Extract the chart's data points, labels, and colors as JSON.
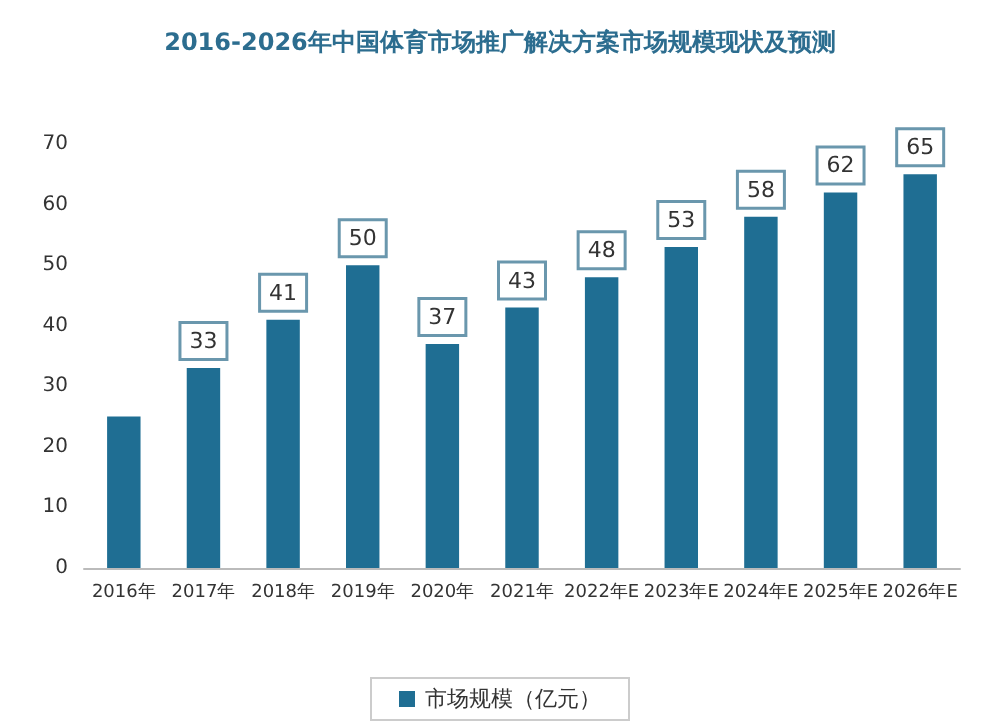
{
  "chart_data": {
    "type": "bar",
    "title": "2016-2026年中国体育市场推广解决方案市场规模现状及预测",
    "categories": [
      "2016年",
      "2017年",
      "2018年",
      "2019年",
      "2020年",
      "2021年",
      "2022年E",
      "2023年E",
      "2024年E",
      "2025年E",
      "2026年E"
    ],
    "series": [
      {
        "name": "市场规模（亿元）",
        "color": "#1f6e93",
        "values": [
          25,
          33,
          41,
          50,
          37,
          43,
          48,
          53,
          58,
          62,
          65
        ],
        "value_labels": [
          null,
          "33",
          "41",
          "50",
          "37",
          "43",
          "48",
          "53",
          "58",
          "62",
          "65"
        ]
      }
    ],
    "ylim": [
      0,
      70
    ],
    "yticks": [
      0,
      10,
      20,
      30,
      40,
      50,
      60,
      70
    ],
    "grid": false,
    "legend": "bottom"
  }
}
